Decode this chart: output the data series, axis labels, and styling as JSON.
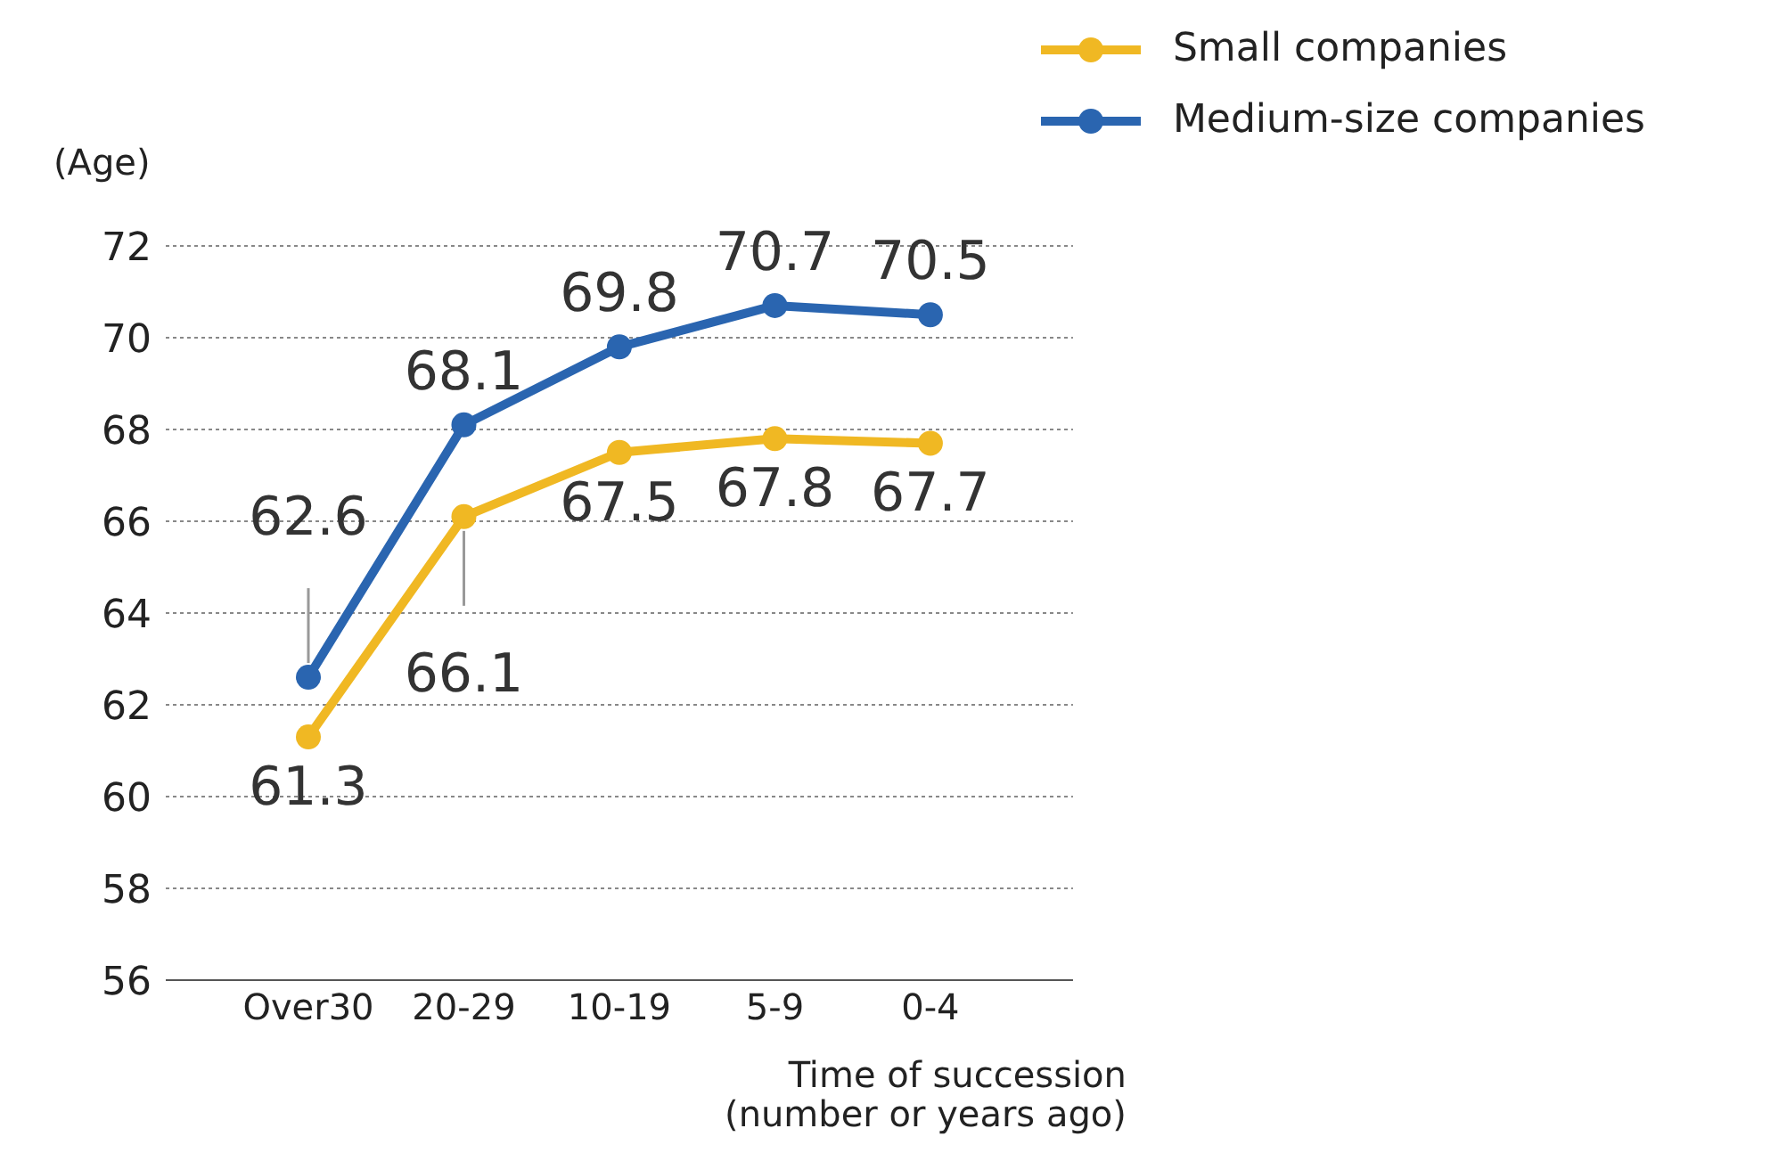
{
  "chart_data": {
    "type": "line",
    "ylabel": "(Age)",
    "xlabel": "Time of succession\n(number or years ago)",
    "categories": [
      "Over30",
      "20-29",
      "10-19",
      "5-9",
      "0-4"
    ],
    "series": [
      {
        "name": "Small companies",
        "color": "#f0b823",
        "values": [
          61.3,
          66.1,
          67.5,
          67.8,
          67.7
        ]
      },
      {
        "name": "Medium-size companies",
        "color": "#2a65b0",
        "values": [
          62.6,
          68.1,
          69.8,
          70.7,
          70.5
        ]
      }
    ],
    "ylim": [
      56,
      72
    ],
    "yticks": [
      56,
      58,
      60,
      62,
      64,
      66,
      68,
      70,
      72
    ],
    "grid": "y",
    "legend": "top right",
    "marker": "circle",
    "line_style": "solid",
    "data_labels": true
  }
}
